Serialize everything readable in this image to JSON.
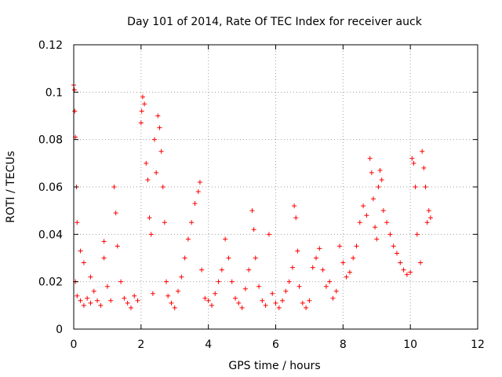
{
  "chart_data": {
    "type": "scatter",
    "title": "Day 101 of 2014, Rate Of TEC Index for receiver auck",
    "xlabel": "GPS time / hours",
    "ylabel": "ROTI / TECUs",
    "xlim": [
      0,
      12
    ],
    "ylim": [
      0,
      0.12
    ],
    "xticks": [
      0,
      2,
      4,
      6,
      8,
      10,
      12
    ],
    "xtick_labels": [
      "0",
      "2",
      "4",
      "6",
      "8",
      "10",
      "12"
    ],
    "yticks": [
      0,
      0.02,
      0.04,
      0.06,
      0.08,
      0.1,
      0.12
    ],
    "ytick_labels": [
      "0",
      "0.02",
      "0.04",
      "0.06",
      "0.08",
      "0.1",
      "0.12"
    ],
    "grid": true,
    "marker": "+",
    "marker_color": "#ff0000",
    "series": [
      {
        "name": "ROTI",
        "points": [
          [
            0.0,
            0.103
          ],
          [
            0.02,
            0.101
          ],
          [
            0.03,
            0.092
          ],
          [
            0.05,
            0.081
          ],
          [
            0.08,
            0.06
          ],
          [
            0.1,
            0.045
          ],
          [
            0.05,
            0.02
          ],
          [
            0.1,
            0.014
          ],
          [
            0.2,
            0.012
          ],
          [
            0.3,
            0.01
          ],
          [
            0.4,
            0.013
          ],
          [
            0.5,
            0.011
          ],
          [
            0.2,
            0.033
          ],
          [
            0.3,
            0.028
          ],
          [
            0.5,
            0.022
          ],
          [
            0.6,
            0.016
          ],
          [
            0.7,
            0.012
          ],
          [
            0.8,
            0.01
          ],
          [
            0.9,
            0.03
          ],
          [
            0.9,
            0.037
          ],
          [
            1.0,
            0.018
          ],
          [
            1.1,
            0.012
          ],
          [
            1.2,
            0.06
          ],
          [
            1.25,
            0.049
          ],
          [
            1.3,
            0.035
          ],
          [
            1.4,
            0.02
          ],
          [
            1.5,
            0.013
          ],
          [
            1.6,
            0.011
          ],
          [
            1.7,
            0.009
          ],
          [
            1.8,
            0.014
          ],
          [
            1.9,
            0.012
          ],
          [
            2.0,
            0.087
          ],
          [
            2.02,
            0.092
          ],
          [
            2.05,
            0.098
          ],
          [
            2.1,
            0.095
          ],
          [
            2.15,
            0.07
          ],
          [
            2.2,
            0.063
          ],
          [
            2.25,
            0.047
          ],
          [
            2.3,
            0.04
          ],
          [
            2.35,
            0.015
          ],
          [
            2.4,
            0.08
          ],
          [
            2.45,
            0.066
          ],
          [
            2.5,
            0.09
          ],
          [
            2.55,
            0.085
          ],
          [
            2.6,
            0.075
          ],
          [
            2.65,
            0.06
          ],
          [
            2.7,
            0.045
          ],
          [
            2.75,
            0.02
          ],
          [
            2.8,
            0.014
          ],
          [
            2.9,
            0.011
          ],
          [
            3.0,
            0.009
          ],
          [
            3.1,
            0.016
          ],
          [
            3.2,
            0.022
          ],
          [
            3.3,
            0.03
          ],
          [
            3.4,
            0.038
          ],
          [
            3.5,
            0.045
          ],
          [
            3.6,
            0.053
          ],
          [
            3.7,
            0.058
          ],
          [
            3.75,
            0.062
          ],
          [
            3.8,
            0.025
          ],
          [
            3.9,
            0.013
          ],
          [
            4.0,
            0.012
          ],
          [
            4.1,
            0.01
          ],
          [
            4.2,
            0.015
          ],
          [
            4.3,
            0.02
          ],
          [
            4.4,
            0.025
          ],
          [
            4.5,
            0.038
          ],
          [
            4.6,
            0.03
          ],
          [
            4.7,
            0.02
          ],
          [
            4.8,
            0.013
          ],
          [
            4.9,
            0.011
          ],
          [
            5.0,
            0.009
          ],
          [
            5.1,
            0.017
          ],
          [
            5.2,
            0.025
          ],
          [
            5.3,
            0.05
          ],
          [
            5.35,
            0.042
          ],
          [
            5.4,
            0.03
          ],
          [
            5.5,
            0.018
          ],
          [
            5.6,
            0.012
          ],
          [
            5.7,
            0.01
          ],
          [
            5.8,
            0.04
          ],
          [
            5.9,
            0.015
          ],
          [
            6.0,
            0.011
          ],
          [
            6.1,
            0.009
          ],
          [
            6.2,
            0.012
          ],
          [
            6.3,
            0.016
          ],
          [
            6.4,
            0.02
          ],
          [
            6.5,
            0.026
          ],
          [
            6.55,
            0.052
          ],
          [
            6.6,
            0.047
          ],
          [
            6.65,
            0.033
          ],
          [
            6.7,
            0.018
          ],
          [
            6.8,
            0.011
          ],
          [
            6.9,
            0.009
          ],
          [
            7.0,
            0.012
          ],
          [
            7.1,
            0.026
          ],
          [
            7.2,
            0.03
          ],
          [
            7.3,
            0.034
          ],
          [
            7.4,
            0.025
          ],
          [
            7.5,
            0.018
          ],
          [
            7.6,
            0.02
          ],
          [
            7.7,
            0.013
          ],
          [
            7.8,
            0.016
          ],
          [
            7.9,
            0.035
          ],
          [
            8.0,
            0.028
          ],
          [
            8.1,
            0.022
          ],
          [
            8.2,
            0.024
          ],
          [
            8.3,
            0.03
          ],
          [
            8.4,
            0.035
          ],
          [
            8.5,
            0.045
          ],
          [
            8.6,
            0.052
          ],
          [
            8.7,
            0.048
          ],
          [
            8.8,
            0.072
          ],
          [
            8.85,
            0.066
          ],
          [
            8.9,
            0.055
          ],
          [
            8.95,
            0.043
          ],
          [
            9.0,
            0.038
          ],
          [
            9.05,
            0.06
          ],
          [
            9.1,
            0.067
          ],
          [
            9.15,
            0.063
          ],
          [
            9.2,
            0.05
          ],
          [
            9.3,
            0.045
          ],
          [
            9.4,
            0.04
          ],
          [
            9.5,
            0.035
          ],
          [
            9.6,
            0.032
          ],
          [
            9.7,
            0.028
          ],
          [
            9.8,
            0.025
          ],
          [
            9.9,
            0.023
          ],
          [
            10.0,
            0.024
          ],
          [
            10.05,
            0.072
          ],
          [
            10.1,
            0.07
          ],
          [
            10.15,
            0.06
          ],
          [
            10.2,
            0.04
          ],
          [
            10.3,
            0.028
          ],
          [
            10.35,
            0.075
          ],
          [
            10.4,
            0.068
          ],
          [
            10.45,
            0.06
          ],
          [
            10.5,
            0.045
          ],
          [
            10.55,
            0.05
          ],
          [
            10.6,
            0.047
          ]
        ]
      }
    ]
  }
}
